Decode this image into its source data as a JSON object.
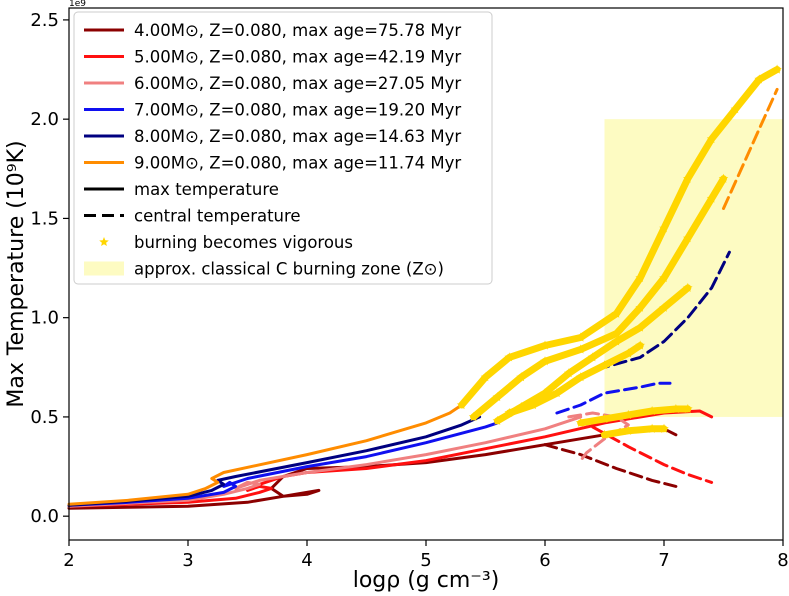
{
  "chart_data": {
    "type": "line",
    "xlabel": "logρ (g cm⁻³)",
    "ylabel": "Max Temperature (10⁹K)",
    "offset_label": "1e9",
    "xlim": [
      2,
      8
    ],
    "ylim": [
      -0.12,
      2.56
    ],
    "xticks": [
      2,
      3,
      4,
      5,
      6,
      7,
      8
    ],
    "yticks": [
      0.0,
      0.5,
      1.0,
      1.5,
      2.0,
      2.5
    ],
    "ytick_labels": [
      "0.0",
      "0.5",
      "1.0",
      "1.5",
      "2.0",
      "2.5"
    ],
    "zone": {
      "label": "approx. classical C burning zone (Z⊙)",
      "x": [
        6.5,
        8.0
      ],
      "y": [
        0.5,
        2.0
      ],
      "color": "#fdfbc2"
    },
    "vigorous_color": "#ffd600",
    "legend": [
      {
        "key": "m4",
        "label": "4.00M⊙, Z=0.080,  max age=75.78 Myr",
        "color": "#8b0000",
        "style": "solid"
      },
      {
        "key": "m5",
        "label": "5.00M⊙, Z=0.080,  max age=42.19 Myr",
        "color": "#ff1010",
        "style": "solid"
      },
      {
        "key": "m6",
        "label": "6.00M⊙, Z=0.080,  max age=27.05 Myr",
        "color": "#f08080",
        "style": "solid"
      },
      {
        "key": "m7",
        "label": "7.00M⊙, Z=0.080,  max age=19.20 Myr",
        "color": "#1010f0",
        "style": "solid"
      },
      {
        "key": "m8",
        "label": "8.00M⊙, Z=0.080,  max age=14.63 Myr",
        "color": "#000080",
        "style": "solid"
      },
      {
        "key": "m9",
        "label": "9.00M⊙, Z=0.080,  max age=11.74 Myr",
        "color": "#ff8c00",
        "style": "solid"
      },
      {
        "key": "tmax",
        "label": "max temperature",
        "color": "#000000",
        "style": "solid"
      },
      {
        "key": "tc",
        "label": "central temperature",
        "color": "#000000",
        "style": "dashed"
      },
      {
        "key": "vig",
        "label": "burning becomes vigorous",
        "color": "#ffd600",
        "style": "star"
      },
      {
        "key": "zone",
        "label": "approx. classical C burning zone (Z⊙)",
        "color": "#fdfbc2",
        "style": "patch"
      }
    ],
    "series": [
      {
        "name": "4.00 Msun max temperature",
        "color": "#8b0000",
        "style": "solid",
        "x": [
          2.0,
          2.5,
          3.0,
          3.5,
          3.8,
          4.0,
          4.1,
          4.0,
          3.8,
          3.7,
          3.8,
          4.0,
          4.5,
          5.0,
          5.5,
          6.0,
          6.5,
          7.0,
          7.1
        ],
        "y": [
          0.04,
          0.045,
          0.05,
          0.07,
          0.1,
          0.12,
          0.13,
          0.11,
          0.1,
          0.14,
          0.2,
          0.24,
          0.25,
          0.27,
          0.31,
          0.36,
          0.41,
          0.44,
          0.41
        ]
      },
      {
        "name": "5.00 Msun max temperature",
        "color": "#ff1010",
        "style": "solid",
        "x": [
          2.0,
          2.5,
          3.0,
          3.4,
          3.6,
          3.7,
          3.6,
          3.5,
          3.6,
          3.8,
          4.0,
          4.5,
          5.0,
          5.5,
          6.0,
          6.5,
          7.0,
          7.3,
          7.4
        ],
        "y": [
          0.05,
          0.06,
          0.07,
          0.09,
          0.12,
          0.14,
          0.15,
          0.13,
          0.16,
          0.2,
          0.22,
          0.24,
          0.28,
          0.34,
          0.4,
          0.47,
          0.52,
          0.53,
          0.5
        ]
      },
      {
        "name": "6.00 Msun max temperature",
        "color": "#f08080",
        "style": "solid",
        "x": [
          2.0,
          2.5,
          3.0,
          3.3,
          3.5,
          3.6,
          3.5,
          3.4,
          3.6,
          4.0,
          4.5,
          5.0,
          5.5,
          6.0,
          6.3
        ],
        "y": [
          0.05,
          0.065,
          0.08,
          0.11,
          0.14,
          0.16,
          0.17,
          0.14,
          0.18,
          0.22,
          0.26,
          0.31,
          0.37,
          0.44,
          0.5
        ]
      },
      {
        "name": "7.00 Msun max temperature",
        "color": "#1010f0",
        "style": "solid",
        "x": [
          2.0,
          2.5,
          3.0,
          3.3,
          3.4,
          3.35,
          3.3,
          3.5,
          4.0,
          4.5,
          5.0,
          5.5,
          5.6
        ],
        "y": [
          0.055,
          0.07,
          0.09,
          0.12,
          0.15,
          0.17,
          0.15,
          0.19,
          0.25,
          0.3,
          0.37,
          0.45,
          0.47
        ]
      },
      {
        "name": "8.00 Msun max temperature",
        "color": "#000080",
        "style": "solid",
        "x": [
          2.0,
          2.5,
          3.0,
          3.2,
          3.3,
          3.25,
          3.4,
          4.0,
          4.5,
          5.0,
          5.3,
          5.45
        ],
        "y": [
          0.055,
          0.075,
          0.1,
          0.13,
          0.16,
          0.18,
          0.2,
          0.27,
          0.33,
          0.4,
          0.46,
          0.5
        ]
      },
      {
        "name": "9.00 Msun max temperature",
        "color": "#ff8c00",
        "style": "solid",
        "x": [
          2.0,
          2.5,
          3.0,
          3.15,
          3.25,
          3.2,
          3.3,
          4.0,
          4.5,
          5.0,
          5.2,
          5.3
        ],
        "y": [
          0.06,
          0.08,
          0.11,
          0.14,
          0.17,
          0.19,
          0.22,
          0.31,
          0.38,
          0.47,
          0.52,
          0.56
        ]
      },
      {
        "name": "4.00 Msun central temperature",
        "color": "#8b0000",
        "style": "dashed",
        "x": [
          6.0,
          6.3,
          6.6,
          6.9,
          7.1
        ],
        "y": [
          0.36,
          0.31,
          0.24,
          0.18,
          0.15
        ]
      },
      {
        "name": "5.00 Msun central temperature",
        "color": "#ff1010",
        "style": "dashed",
        "x": [
          6.4,
          6.7,
          7.0,
          7.2,
          7.4
        ],
        "y": [
          0.45,
          0.35,
          0.26,
          0.21,
          0.17
        ]
      },
      {
        "name": "6.00 Msun central temperature",
        "color": "#f08080",
        "style": "dashed",
        "x": [
          6.2,
          6.4,
          6.6,
          6.7,
          6.5,
          6.35,
          6.3
        ],
        "y": [
          0.5,
          0.52,
          0.5,
          0.46,
          0.39,
          0.32,
          0.28
        ]
      },
      {
        "name": "7.00 Msun central temperature",
        "color": "#1010f0",
        "style": "dashed",
        "x": [
          6.1,
          6.3,
          6.5,
          6.8,
          6.95,
          7.05
        ],
        "y": [
          0.52,
          0.56,
          0.62,
          0.65,
          0.67,
          0.67
        ]
      },
      {
        "name": "8.00 Msun central temperature",
        "color": "#000080",
        "style": "dashed",
        "x": [
          6.3,
          6.5,
          6.8,
          7.0,
          7.2,
          7.4,
          7.55
        ],
        "y": [
          0.7,
          0.75,
          0.8,
          0.88,
          1.0,
          1.15,
          1.33
        ]
      },
      {
        "name": "9.00 Msun central temperature",
        "color": "#ff8c00",
        "style": "dashed",
        "x": [
          7.5,
          7.65,
          7.8,
          7.95
        ],
        "y": [
          1.55,
          1.75,
          1.95,
          2.15
        ]
      }
    ],
    "vigorous_tracks": [
      {
        "name": "4.00 Msun vigorous",
        "x": [
          6.5,
          6.7,
          6.9,
          7.0
        ],
        "y": [
          0.41,
          0.43,
          0.44,
          0.44
        ]
      },
      {
        "name": "5.00 Msun vigorous",
        "x": [
          6.3,
          6.5,
          6.7,
          6.9,
          7.1,
          7.2
        ],
        "y": [
          0.47,
          0.49,
          0.51,
          0.53,
          0.54,
          0.54
        ]
      },
      {
        "name": "6.00 Msun vigorous",
        "x": [
          5.7,
          5.9,
          6.1,
          6.3,
          6.5,
          6.7,
          6.8
        ],
        "y": [
          0.52,
          0.56,
          0.62,
          0.7,
          0.76,
          0.82,
          0.86
        ]
      },
      {
        "name": "7.00 Msun vigorous",
        "x": [
          5.6,
          5.8,
          6.0,
          6.2,
          6.4,
          6.6,
          6.8,
          7.0,
          7.2
        ],
        "y": [
          0.48,
          0.55,
          0.62,
          0.72,
          0.8,
          0.88,
          0.95,
          1.05,
          1.15
        ]
      },
      {
        "name": "8.00 Msun vigorous",
        "x": [
          5.4,
          5.6,
          5.8,
          6.0,
          6.3,
          6.6,
          6.8,
          7.0,
          7.2,
          7.4,
          7.5
        ],
        "y": [
          0.5,
          0.6,
          0.7,
          0.78,
          0.84,
          0.92,
          1.05,
          1.2,
          1.4,
          1.6,
          1.7
        ]
      },
      {
        "name": "9.00 Msun vigorous",
        "x": [
          5.3,
          5.5,
          5.7,
          6.0,
          6.3,
          6.6,
          6.8,
          7.0,
          7.2,
          7.4,
          7.6,
          7.8,
          7.95
        ],
        "y": [
          0.56,
          0.7,
          0.8,
          0.86,
          0.9,
          1.02,
          1.2,
          1.45,
          1.7,
          1.9,
          2.05,
          2.2,
          2.25
        ]
      }
    ]
  }
}
